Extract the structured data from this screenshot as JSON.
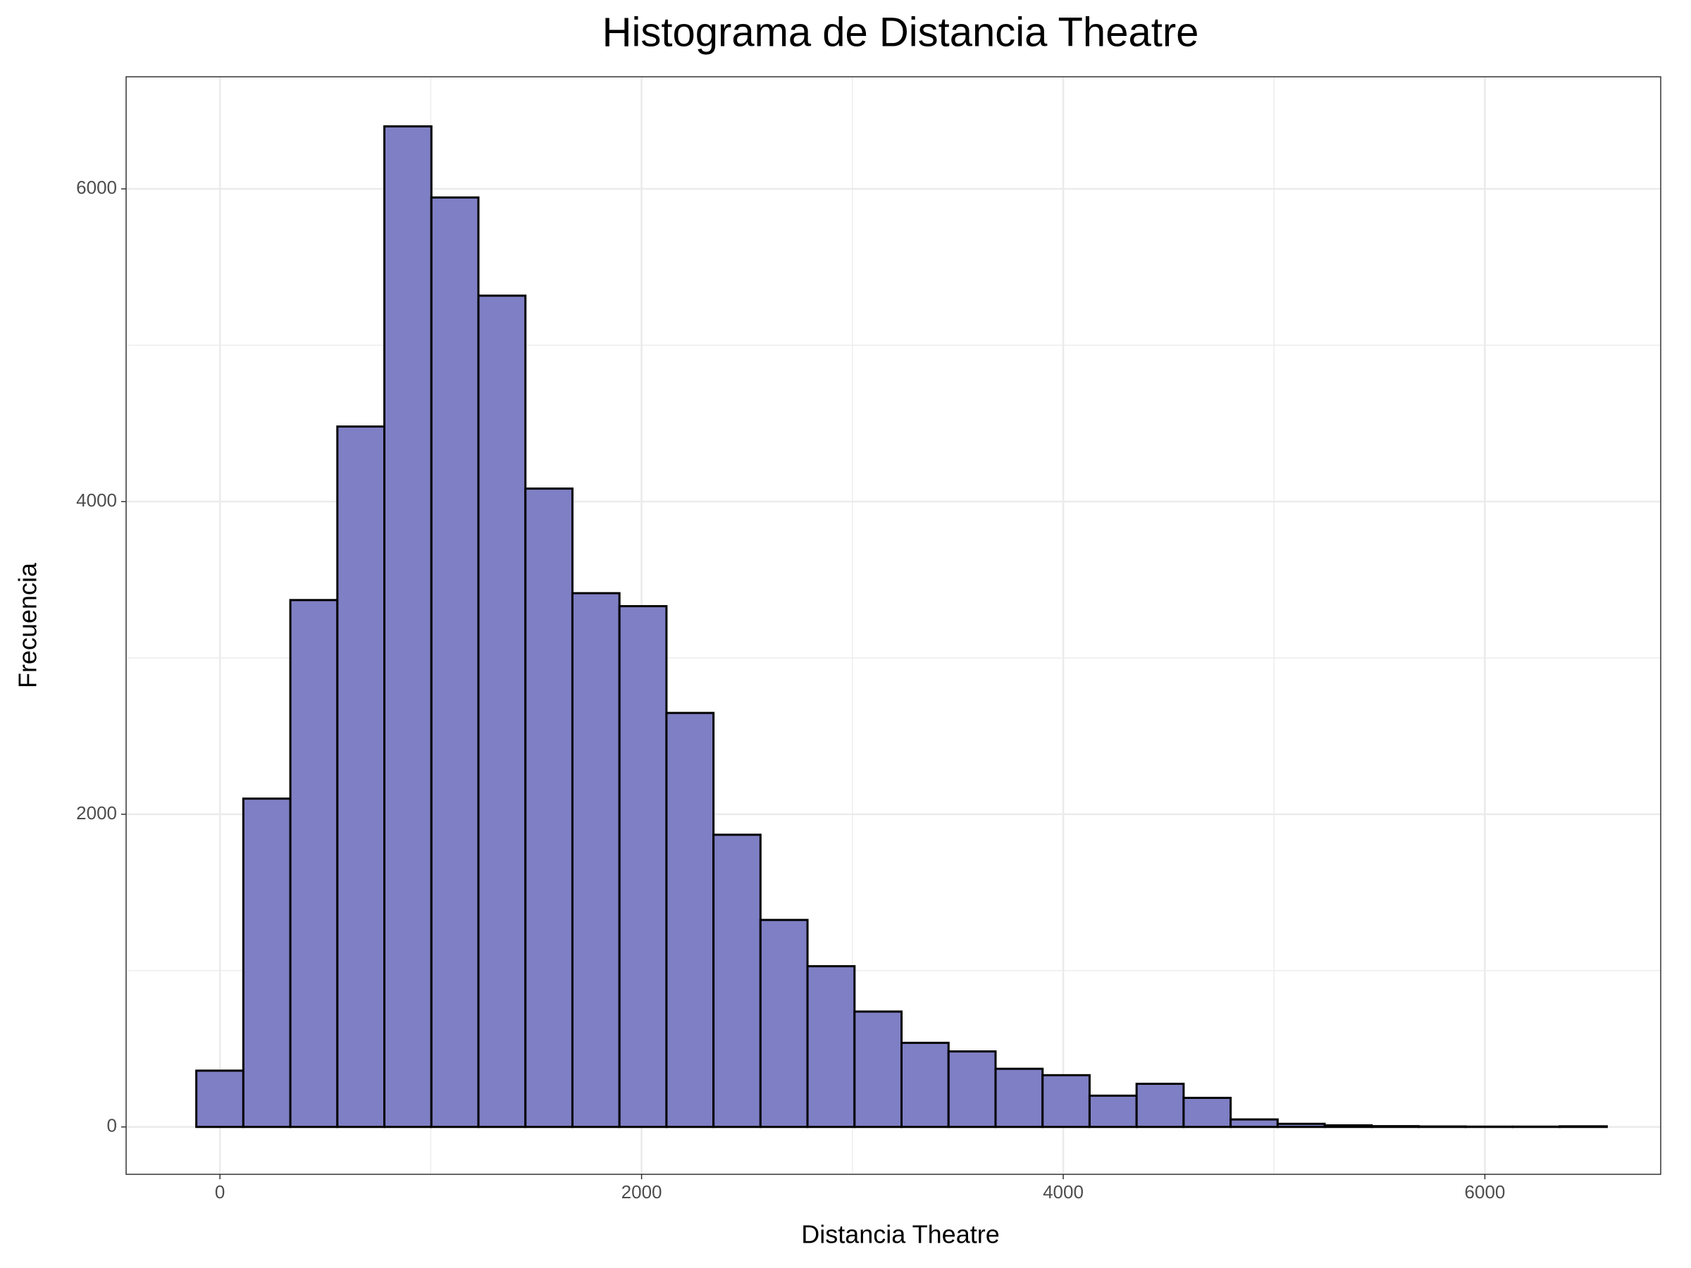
{
  "chart_data": {
    "type": "histogram",
    "title": "Histograma de Distancia Theatre",
    "x_label": "Distancia Theatre",
    "y_label": "Frecuencia",
    "bins": [
      -112,
      111,
      334,
      557,
      780,
      1003,
      1226,
      1449,
      1672,
      1895,
      2118,
      2341,
      2564,
      2787,
      3010,
      3233,
      3456,
      3679,
      3902,
      4125,
      4348,
      4571,
      4794,
      5017,
      5240,
      5463,
      5686,
      5909,
      6132,
      6355,
      6578
    ],
    "values": [
      360,
      2100,
      3370,
      4480,
      6400,
      5945,
      5317,
      4083,
      3414,
      3331,
      2648,
      1869,
      1324,
      1028,
      738,
      538,
      483,
      372,
      331,
      200,
      276,
      186,
      48,
      20,
      10,
      5,
      3,
      2,
      2,
      4
    ],
    "color": "#7f7fc5",
    "edge_color": "#000000",
    "xlim": [
      -445,
      6834
    ],
    "ylim": [
      -303,
      6717
    ],
    "xticks": [
      0,
      2000,
      4000,
      6000
    ],
    "yticks": [
      0,
      2000,
      4000,
      6000
    ],
    "xminorticks": [
      1000,
      3000,
      5000
    ],
    "yminorticks": [
      1000,
      3000,
      5000
    ],
    "grid": true
  }
}
